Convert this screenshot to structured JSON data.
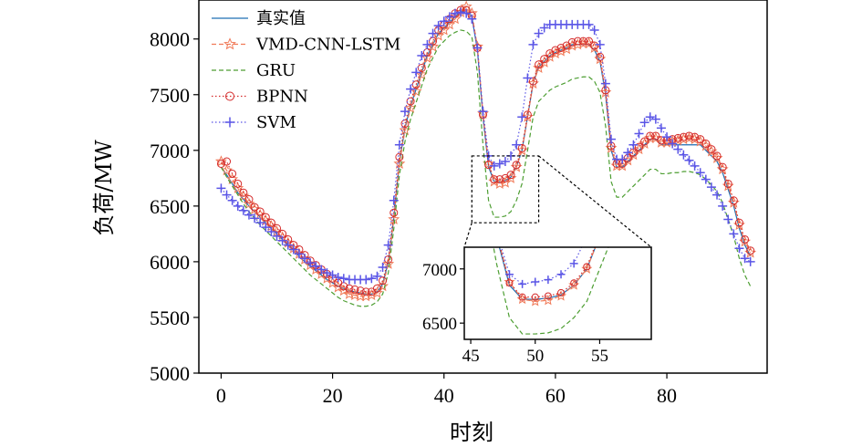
{
  "chart_data": {
    "type": "line",
    "xlabel": "时刻",
    "ylabel": "负荷/MW",
    "xlim": [
      -4,
      98
    ],
    "ylim": [
      5000,
      8350
    ],
    "xticks": [
      0,
      20,
      40,
      60,
      80
    ],
    "yticks": [
      5000,
      5500,
      6000,
      6500,
      7000,
      7500,
      8000
    ],
    "legend_position": "top-left",
    "inset": {
      "xlim": [
        44.5,
        59
      ],
      "ylim": [
        6350,
        7200
      ],
      "xticks": [
        45,
        50,
        55
      ],
      "yticks": [
        6500,
        7000
      ],
      "source_box": {
        "x": [
          45,
          57
        ],
        "y": [
          6350,
          6950
        ]
      }
    },
    "series": [
      {
        "name": "真实值",
        "color": "#1f6fb4",
        "style": "solid",
        "marker": "none",
        "values": [
          6850,
          6780,
          6700,
          6620,
          6560,
          6500,
          6450,
          6400,
          6350,
          6300,
          6250,
          6200,
          6150,
          6100,
          6050,
          6000,
          5960,
          5920,
          5880,
          5840,
          5810,
          5780,
          5760,
          5740,
          5730,
          5720,
          5710,
          5710,
          5730,
          5800,
          6000,
          6400,
          6900,
          7200,
          7400,
          7550,
          7700,
          7850,
          7950,
          8050,
          8100,
          8150,
          8200,
          8250,
          8250,
          8200,
          7900,
          7300,
          6850,
          6720,
          6720,
          6730,
          6760,
          6850,
          7000,
          7300,
          7600,
          7750,
          7800,
          7850,
          7880,
          7900,
          7920,
          7950,
          7950,
          7950,
          7950,
          7900,
          7800,
          7500,
          7000,
          6850,
          6850,
          6900,
          6950,
          7000,
          7050,
          7100,
          7100,
          7050,
          7050,
          7050,
          7050,
          7050,
          7050,
          7050,
          7050,
          7000,
          6950,
          6900,
          6800,
          6650,
          6500,
          6300,
          6150,
          6050
        ]
      },
      {
        "name": "VMD-CNN-LSTM",
        "color": "#f07a58",
        "style": "dashed",
        "marker": "star",
        "values": [
          6900,
          6820,
          6740,
          6660,
          6590,
          6520,
          6470,
          6420,
          6370,
          6320,
          6270,
          6220,
          6170,
          6120,
          6070,
          6020,
          5970,
          5930,
          5890,
          5850,
          5810,
          5770,
          5740,
          5710,
          5700,
          5690,
          5690,
          5700,
          5720,
          5780,
          5980,
          6380,
          6880,
          7180,
          7380,
          7530,
          7680,
          7830,
          7930,
          8030,
          8080,
          8130,
          8180,
          8240,
          8290,
          8230,
          7930,
          7330,
          6880,
          6720,
          6700,
          6710,
          6750,
          6850,
          7000,
          7300,
          7600,
          7740,
          7790,
          7840,
          7870,
          7890,
          7910,
          7940,
          7950,
          7960,
          7960,
          7920,
          7820,
          7520,
          7020,
          6860,
          6860,
          6910,
          6960,
          7010,
          7060,
          7110,
          7110,
          7070,
          7070,
          7080,
          7090,
          7100,
          7110,
          7100,
          7080,
          7040,
          6990,
          6930,
          6830,
          6680,
          6530,
          6330,
          6180,
          6080
        ]
      },
      {
        "name": "GRU",
        "color": "#4d9e32",
        "style": "dashed",
        "marker": "none",
        "values": [
          6850,
          6760,
          6680,
          6600,
          6520,
          6450,
          6390,
          6330,
          6280,
          6230,
          6180,
          6130,
          6080,
          6030,
          5980,
          5930,
          5880,
          5840,
          5800,
          5760,
          5720,
          5680,
          5650,
          5630,
          5610,
          5600,
          5600,
          5610,
          5640,
          5710,
          5900,
          6300,
          6780,
          7080,
          7280,
          7430,
          7580,
          7730,
          7830,
          7930,
          7980,
          8030,
          8060,
          8080,
          8070,
          8020,
          7700,
          7050,
          6550,
          6400,
          6400,
          6410,
          6450,
          6550,
          6700,
          7000,
          7300,
          7440,
          7490,
          7540,
          7570,
          7590,
          7610,
          7640,
          7650,
          7660,
          7660,
          7620,
          7520,
          7220,
          6720,
          6580,
          6580,
          6630,
          6680,
          6730,
          6780,
          6830,
          6830,
          6790,
          6790,
          6800,
          6800,
          6810,
          6810,
          6800,
          6780,
          6740,
          6690,
          6630,
          6530,
          6380,
          6230,
          6030,
          5880,
          5780
        ]
      },
      {
        "name": "BPNN",
        "color": "#d42a2a",
        "style": "dotted",
        "marker": "circle",
        "values": [
          6880,
          6900,
          6790,
          6700,
          6620,
          6560,
          6490,
          6450,
          6400,
          6350,
          6300,
          6250,
          6200,
          6150,
          6110,
          6060,
          6010,
          5970,
          5930,
          5890,
          5850,
          5810,
          5780,
          5760,
          5750,
          5740,
          5730,
          5730,
          5760,
          5830,
          6020,
          6440,
          6940,
          7240,
          7440,
          7590,
          7740,
          7880,
          7980,
          8080,
          8130,
          8180,
          8230,
          8260,
          8260,
          8210,
          7920,
          7320,
          6870,
          6740,
          6740,
          6750,
          6780,
          6870,
          7020,
          7320,
          7620,
          7770,
          7820,
          7870,
          7900,
          7920,
          7940,
          7970,
          7980,
          7980,
          7980,
          7940,
          7840,
          7540,
          7040,
          6880,
          6880,
          6930,
          6980,
          7030,
          7080,
          7130,
          7130,
          7090,
          7090,
          7100,
          7110,
          7120,
          7130,
          7120,
          7100,
          7060,
          7010,
          6950,
          6850,
          6700,
          6550,
          6350,
          6200,
          6100
        ]
      },
      {
        "name": "SVM",
        "color": "#5a55e6",
        "style": "dotted",
        "marker": "plus",
        "values": [
          6660,
          6600,
          6550,
          6500,
          6460,
          6420,
          6390,
          6350,
          6310,
          6270,
          6230,
          6190,
          6150,
          6110,
          6070,
          6030,
          5990,
          5960,
          5930,
          5900,
          5880,
          5860,
          5850,
          5840,
          5840,
          5840,
          5840,
          5850,
          5870,
          5950,
          6150,
          6550,
          7050,
          7350,
          7550,
          7700,
          7850,
          7950,
          8050,
          8120,
          8160,
          8200,
          8230,
          8240,
          8230,
          8180,
          7920,
          7350,
          6950,
          6860,
          6880,
          6900,
          6950,
          7050,
          7300,
          7650,
          7950,
          8050,
          8100,
          8130,
          8130,
          8130,
          8130,
          8130,
          8130,
          8130,
          8130,
          8080,
          7950,
          7600,
          7100,
          6920,
          6920,
          6980,
          7050,
          7150,
          7250,
          7300,
          7280,
          7200,
          7120,
          7060,
          7010,
          6960,
          6910,
          6860,
          6800,
          6740,
          6670,
          6600,
          6500,
          6380,
          6250,
          6120,
          6030,
          6000
        ]
      }
    ]
  }
}
